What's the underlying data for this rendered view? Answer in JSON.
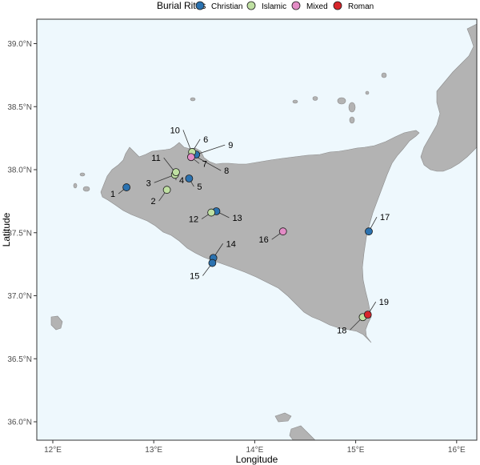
{
  "legend": {
    "title": "Burial Rites",
    "items": [
      {
        "label": "Christian",
        "color": "#2b72b0"
      },
      {
        "label": "Islamic",
        "color": "#bfe0a2"
      },
      {
        "label": "Mixed",
        "color": "#e38cc6"
      },
      {
        "label": "Roman",
        "color": "#d7262b"
      }
    ]
  },
  "axes": {
    "xlabel": "Longitude",
    "ylabel": "Latitude",
    "x_ticks": [
      "12°E",
      "13°E",
      "14°E",
      "15°E",
      "16°E"
    ],
    "y_ticks": [
      "39.0°N",
      "38.5°N",
      "38.0°N",
      "37.5°N",
      "37.0°N",
      "36.5°N",
      "36.0°N"
    ]
  },
  "colors": {
    "sea": "#eef8fd",
    "land": "#b3b3b3"
  },
  "chart_data": {
    "type": "scatter",
    "xlabel": "Longitude",
    "ylabel": "Latitude",
    "xlim": [
      11.8,
      16.25
    ],
    "ylim": [
      35.85,
      39.25
    ],
    "series": [
      {
        "name": "Christian",
        "points": [
          {
            "id": "1",
            "lon": 12.73,
            "lat": 37.86
          },
          {
            "id": "5",
            "lon": 13.35,
            "lat": 37.93
          },
          {
            "id": "9",
            "lon": 13.42,
            "lat": 38.12
          },
          {
            "id": "13",
            "lon": 13.62,
            "lat": 37.67
          },
          {
            "id": "14",
            "lon": 13.59,
            "lat": 37.3
          },
          {
            "id": "15",
            "lon": 13.58,
            "lat": 37.26
          },
          {
            "id": "17",
            "lon": 15.13,
            "lat": 37.51
          }
        ]
      },
      {
        "name": "Islamic",
        "points": [
          {
            "id": "2",
            "lon": 13.13,
            "lat": 37.84
          },
          {
            "id": "3",
            "lon": 13.21,
            "lat": 37.96
          },
          {
            "id": "4",
            "lon": 13.22,
            "lat": 37.98
          },
          {
            "id": "6",
            "lon": 13.38,
            "lat": 38.14
          },
          {
            "id": "12",
            "lon": 13.57,
            "lat": 37.66
          },
          {
            "id": "18",
            "lon": 15.07,
            "lat": 36.83
          }
        ]
      },
      {
        "name": "Mixed",
        "points": [
          {
            "id": "7",
            "lon": 13.37,
            "lat": 38.1
          },
          {
            "id": "16",
            "lon": 14.28,
            "lat": 37.51
          }
        ]
      },
      {
        "name": "Roman",
        "points": [
          {
            "id": "19",
            "lon": 15.12,
            "lat": 36.85
          }
        ]
      }
    ],
    "unplaced_labels": [
      "8",
      "10",
      "11"
    ],
    "grid": false,
    "legend_position": "top"
  }
}
